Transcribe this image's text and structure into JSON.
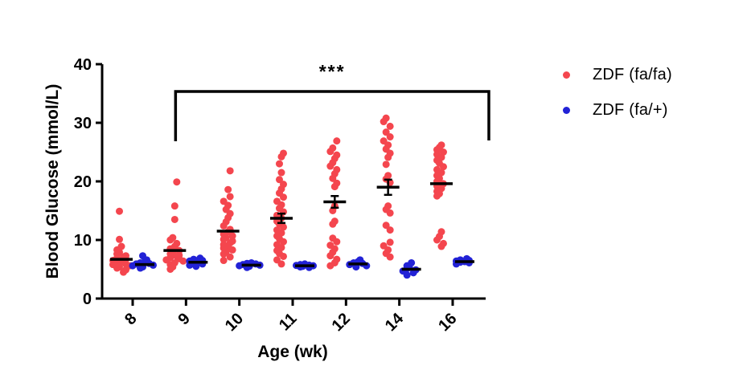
{
  "figure": {
    "background": "#ffffff",
    "axis_color": "#000000"
  },
  "legend": {
    "items": [
      {
        "label": "ZDF (fa/fa)",
        "color": "#f4464e",
        "marker": "dot"
      },
      {
        "label": "ZDF (fa/+)",
        "color": "#2222d6",
        "marker": "dot"
      }
    ]
  },
  "significance": {
    "label": "***",
    "from_category": "9",
    "to_category": "16"
  },
  "chart_data": {
    "type": "scatter",
    "subtype": "column-scatter-with-mean-sem",
    "title": "",
    "xlabel": "Age (wk)",
    "ylabel": "Blood Glucose (mmol/L)",
    "ylim": [
      0,
      40
    ],
    "yticks": [
      "0",
      "10",
      "20",
      "30",
      "40"
    ],
    "categories": [
      "8",
      "9",
      "10",
      "11",
      "12",
      "14",
      "16"
    ],
    "legend_position": "right",
    "grid": false,
    "series": [
      {
        "name": "ZDF (fa/fa)",
        "color": "#f4464e",
        "means": [
          6.7,
          8.2,
          11.5,
          13.7,
          16.5,
          19.0,
          19.6
        ],
        "sems": [
          0,
          0,
          0,
          0.8,
          1.0,
          1.3,
          0
        ],
        "values": [
          [
            14.9,
            10.1,
            8.9,
            8.3,
            7.9,
            7.6,
            7.3,
            7.1,
            6.9,
            6.7,
            6.5,
            6.3,
            6.1,
            5.9,
            5.8,
            5.6,
            5.4,
            5.2,
            4.9,
            4.5
          ],
          [
            19.9,
            15.8,
            13.5,
            10.4,
            10.0,
            9.4,
            8.9,
            8.5,
            8.2,
            7.9,
            7.6,
            7.4,
            7.2,
            7.0,
            6.8,
            6.6,
            6.4,
            6.1,
            5.8,
            5.4,
            5.0
          ],
          [
            21.8,
            18.6,
            17.4,
            16.6,
            15.9,
            15.2,
            14.5,
            13.8,
            13.1,
            12.4,
            11.8,
            11.4,
            11.0,
            10.7,
            10.4,
            10.1,
            9.8,
            9.5,
            9.2,
            8.9,
            8.6,
            8.3,
            8.0,
            7.6,
            7.1,
            6.5
          ],
          [
            24.8,
            24.2,
            23.0,
            21.5,
            20.3,
            19.5,
            18.7,
            18.0,
            17.3,
            16.6,
            16.0,
            15.4,
            14.8,
            14.2,
            13.7,
            13.2,
            12.7,
            12.2,
            11.7,
            11.2,
            10.7,
            10.2,
            9.7,
            9.2,
            8.7,
            8.2,
            7.7,
            7.2,
            6.6,
            5.9
          ],
          [
            26.9,
            25.7,
            25.1,
            24.5,
            23.9,
            23.2,
            22.6,
            22.0,
            21.3,
            20.5,
            19.7,
            19.1,
            15.8,
            15.0,
            13.2,
            12.7,
            10.3,
            9.7,
            9.1,
            8.5,
            7.9,
            7.3,
            6.7,
            6.1,
            5.6
          ],
          [
            30.8,
            30.2,
            29.4,
            28.4,
            27.6,
            26.9,
            26.2,
            25.5,
            24.8,
            24.1,
            22.9,
            21.0,
            20.4,
            19.8,
            15.8,
            15.2,
            14.6,
            12.5,
            11.7,
            9.6,
            9.0,
            8.3,
            7.7,
            7.1
          ],
          [
            26.2,
            25.8,
            25.4,
            25.0,
            24.6,
            24.1,
            23.6,
            23.1,
            22.5,
            22.0,
            21.5,
            21.0,
            20.5,
            20.0,
            19.6,
            19.2,
            18.8,
            18.3,
            17.9,
            17.5,
            11.4,
            10.6,
            10.0,
            9.4,
            8.9
          ]
        ]
      },
      {
        "name": "ZDF (fa/+)",
        "color": "#2222d6",
        "means": [
          5.8,
          6.2,
          5.7,
          5.6,
          5.9,
          5.0,
          6.3
        ],
        "sems": [
          0,
          0,
          0,
          0,
          0,
          0,
          0
        ],
        "values": [
          [
            7.3,
            6.6,
            6.3,
            6.1,
            6.0,
            5.9,
            5.7,
            5.6,
            5.4,
            5.2
          ],
          [
            6.9,
            6.7,
            6.5,
            6.4,
            6.2,
            6.1,
            5.9,
            5.7,
            5.5
          ],
          [
            6.1,
            6.0,
            5.9,
            5.8,
            5.7,
            5.6,
            5.5,
            5.3
          ],
          [
            5.9,
            5.8,
            5.7,
            5.65,
            5.6,
            5.5,
            5.4,
            5.3
          ],
          [
            6.6,
            6.3,
            6.1,
            6.0,
            5.8,
            5.6,
            5.4
          ],
          [
            6.1,
            5.6,
            5.3,
            5.1,
            4.9,
            4.7,
            4.4,
            4.0
          ],
          [
            6.8,
            6.6,
            6.5,
            6.4,
            6.3,
            6.2,
            6.1,
            5.9
          ]
        ]
      }
    ]
  }
}
